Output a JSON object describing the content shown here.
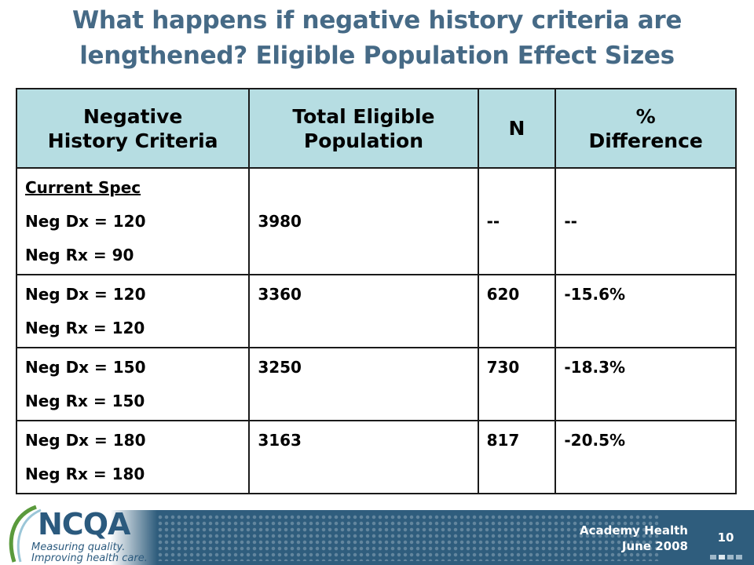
{
  "slide": {
    "title_line1": "What happens if negative history criteria are",
    "title_line2": "lengthened? Eligible Population Effect Sizes"
  },
  "table": {
    "headers": {
      "criteria_line1": "Negative",
      "criteria_line2": "History Criteria",
      "population_line1": "Total Eligible",
      "population_line2": "Population",
      "n": "N",
      "diff_line1": "%",
      "diff_line2": "Difference"
    },
    "rows": [
      {
        "label": "Current Spec",
        "dx": "Neg Dx = 120",
        "rx": "Neg Rx = 90",
        "population": "3980",
        "n": "--",
        "diff": "--"
      },
      {
        "dx": "Neg Dx = 120",
        "rx": "Neg Rx = 120",
        "population": "3360",
        "n": "620",
        "diff": "-15.6%"
      },
      {
        "dx": "Neg Dx = 150",
        "rx": "Neg Rx = 150",
        "population": "3250",
        "n": "730",
        "diff": "-18.3%"
      },
      {
        "dx": "Neg Dx = 180",
        "rx": "Neg Rx = 180",
        "population": "3163",
        "n": "817",
        "diff": "-20.5%"
      }
    ]
  },
  "footer": {
    "logo_text": "NCQA",
    "logo_tagline1": "Measuring quality.",
    "logo_tagline2": "Improving health care.",
    "event": "Academy Health",
    "date": "June 2008",
    "page_number": "10"
  },
  "colors": {
    "title": "#466a86",
    "header_fill": "#b6dde2",
    "footer_bar": "#2f5d7d"
  }
}
